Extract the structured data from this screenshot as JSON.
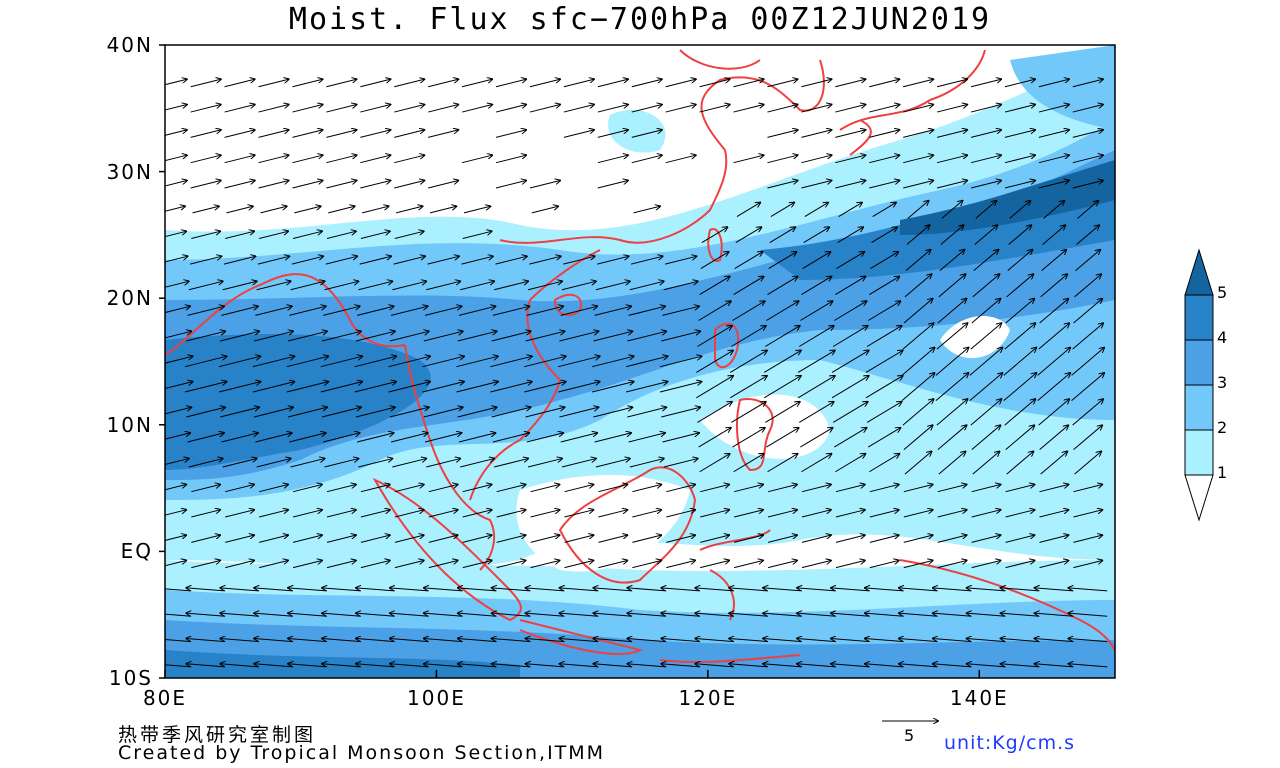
{
  "title": "Moist. Flux sfc−700hPa 00Z12JUN2019",
  "map": {
    "lon_range": [
      80,
      150
    ],
    "lat_range": [
      -10,
      40
    ],
    "lon_ticks": [
      {
        "v": 80,
        "label": "80E"
      },
      {
        "v": 100,
        "label": "100E"
      },
      {
        "v": 120,
        "label": "120E"
      },
      {
        "v": 140,
        "label": "140E"
      }
    ],
    "lat_ticks": [
      {
        "v": 40,
        "label": "40N"
      },
      {
        "v": 30,
        "label": "30N"
      },
      {
        "v": 20,
        "label": "20N"
      },
      {
        "v": 10,
        "label": "10N"
      },
      {
        "v": 0,
        "label": "EQ"
      },
      {
        "v": -10,
        "label": "10S"
      }
    ],
    "coastline_color": "#ee4040",
    "vector_color": "#000000"
  },
  "colorbar": {
    "levels": [
      "1",
      "2",
      "3",
      "4",
      "5"
    ],
    "colors": [
      "#ffffff",
      "#aaf0ff",
      "#73c8fa",
      "#4ba0e6",
      "#2882c8",
      "#1464a0"
    ]
  },
  "reference_vector": {
    "value": "5"
  },
  "unit": "unit:Kg/cm.s",
  "footer": {
    "cn": "热带季风研究室制图",
    "credit": "Created by Tropical Monsoon Section,ITMM"
  }
}
